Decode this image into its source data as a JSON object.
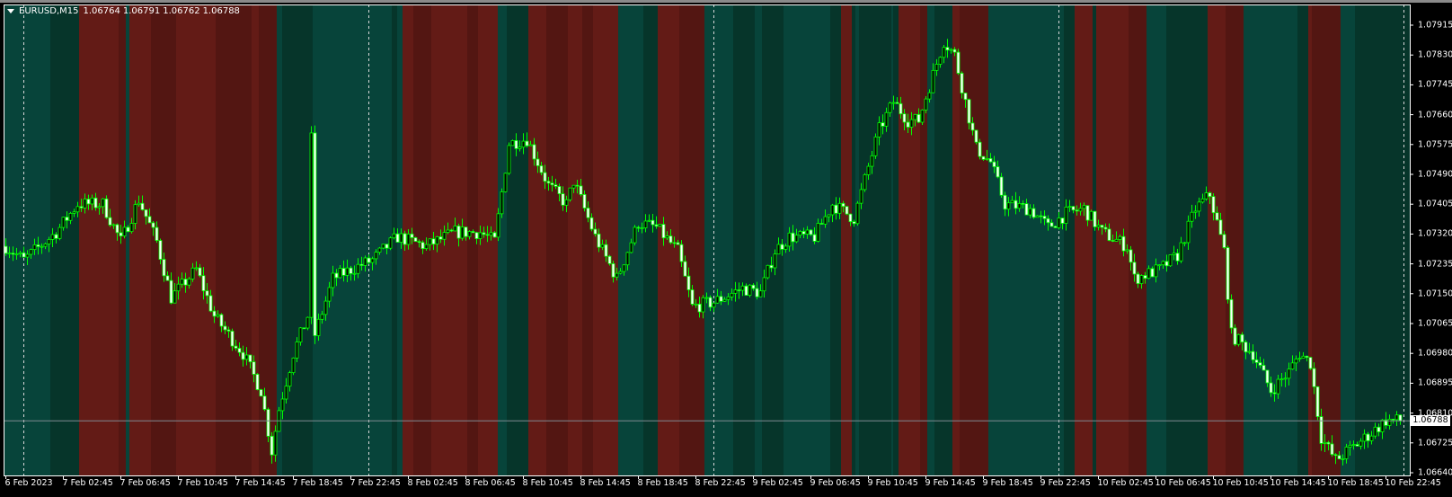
{
  "header": {
    "symbol": "EURUSD,M15",
    "open": "1.06764",
    "high": "1.06791",
    "low": "1.06762",
    "close": "1.06788"
  },
  "colors": {
    "bull_band": "#07443a",
    "bull_band_weak": "#06352a",
    "bear_band": "#631b16",
    "bear_band_weak": "#531612",
    "candle": "#00ff00",
    "bear_body": "#ffffff",
    "price_line": "#7f8a90"
  },
  "current_price": "1.06788",
  "price_axis": [
    "1.07915",
    "1.07830",
    "1.07745",
    "1.07660",
    "1.07575",
    "1.07490",
    "1.07405",
    "1.07320",
    "1.07235",
    "1.07150",
    "1.07065",
    "1.06980",
    "1.06895",
    "1.06810",
    "1.06725",
    "1.06640"
  ],
  "time_axis": [
    "6 Feb 2023",
    "7 Feb 02:45",
    "7 Feb 06:45",
    "7 Feb 10:45",
    "7 Feb 14:45",
    "7 Feb 18:45",
    "7 Feb 22:45",
    "8 Feb 02:45",
    "8 Feb 06:45",
    "8 Feb 10:45",
    "8 Feb 14:45",
    "8 Feb 18:45",
    "8 Feb 22:45",
    "9 Feb 02:45",
    "9 Feb 06:45",
    "9 Feb 10:45",
    "9 Feb 14:45",
    "9 Feb 18:45",
    "9 Feb 22:45",
    "10 Feb 02:45",
    "10 Feb 06:45",
    "10 Feb 10:45",
    "10 Feb 14:45",
    "10 Feb 18:45",
    "10 Feb 22:45"
  ],
  "chart_data": {
    "type": "candlestick",
    "timeframe": "M15",
    "bars_per_label": 16,
    "total_bars": 389,
    "day_separator_bars": [
      5,
      101,
      197,
      293,
      389
    ],
    "ylim": [
      1.06632,
      1.0795
    ],
    "price_path": [
      [
        0,
        1.07285
      ],
      [
        5,
        1.07246
      ],
      [
        14,
        1.07325
      ],
      [
        20,
        1.07405
      ],
      [
        27,
        1.07405
      ],
      [
        32,
        1.07299
      ],
      [
        37,
        1.07418
      ],
      [
        42,
        1.07299
      ],
      [
        46,
        1.07139
      ],
      [
        53,
        1.07219
      ],
      [
        58,
        1.07086
      ],
      [
        66,
        1.0698
      ],
      [
        71,
        1.06874
      ],
      [
        74,
        1.06701
      ],
      [
        76,
        1.06821
      ],
      [
        80,
        1.0698
      ],
      [
        84,
        1.07086
      ],
      [
        85,
        1.07591
      ],
      [
        86,
        1.07033
      ],
      [
        91,
        1.07193
      ],
      [
        96,
        1.07219
      ],
      [
        102,
        1.07246
      ],
      [
        109,
        1.07312
      ],
      [
        117,
        1.07285
      ],
      [
        125,
        1.07325
      ],
      [
        132,
        1.07325
      ],
      [
        136,
        1.07299
      ],
      [
        140,
        1.07578
      ],
      [
        145,
        1.07591
      ],
      [
        151,
        1.07458
      ],
      [
        156,
        1.07405
      ],
      [
        158,
        1.07471
      ],
      [
        164,
        1.07312
      ],
      [
        170,
        1.07193
      ],
      [
        176,
        1.07352
      ],
      [
        181,
        1.07339
      ],
      [
        187,
        1.07272
      ],
      [
        191,
        1.07113
      ],
      [
        197,
        1.07126
      ],
      [
        205,
        1.07166
      ],
      [
        210,
        1.07153
      ],
      [
        214,
        1.07272
      ],
      [
        218,
        1.07312
      ],
      [
        225,
        1.07312
      ],
      [
        230,
        1.07405
      ],
      [
        236,
        1.07365
      ],
      [
        240,
        1.07511
      ],
      [
        243,
        1.07618
      ],
      [
        247,
        1.07697
      ],
      [
        251,
        1.07644
      ],
      [
        254,
        1.07644
      ],
      [
        256,
        1.0771
      ],
      [
        261,
        1.0787
      ],
      [
        264,
        1.0783
      ],
      [
        267,
        1.07697
      ],
      [
        270,
        1.07564
      ],
      [
        274,
        1.07525
      ],
      [
        278,
        1.07405
      ],
      [
        285,
        1.07392
      ],
      [
        290,
        1.07339
      ],
      [
        295,
        1.07378
      ],
      [
        300,
        1.07392
      ],
      [
        305,
        1.07325
      ],
      [
        312,
        1.07285
      ],
      [
        314,
        1.07193
      ],
      [
        321,
        1.07219
      ],
      [
        326,
        1.07259
      ],
      [
        331,
        1.07392
      ],
      [
        335,
        1.07432
      ],
      [
        339,
        1.07272
      ],
      [
        341,
        1.07033
      ],
      [
        347,
        1.0698
      ],
      [
        352,
        1.06874
      ],
      [
        357,
        1.06927
      ],
      [
        360,
        1.0698
      ],
      [
        363,
        1.06953
      ],
      [
        366,
        1.06741
      ],
      [
        370,
        1.06675
      ],
      [
        375,
        1.06714
      ],
      [
        380,
        1.06754
      ],
      [
        384,
        1.06789
      ],
      [
        388,
        1.06788
      ]
    ],
    "bands": [
      [
        0,
        "bull"
      ],
      [
        13,
        "bull_weak"
      ],
      [
        21,
        "bear"
      ],
      [
        32,
        "bear_weak"
      ],
      [
        34,
        "bull"
      ],
      [
        35,
        "bear"
      ],
      [
        41,
        "bear_weak"
      ],
      [
        48,
        "bear"
      ],
      [
        59,
        "bear_weak"
      ],
      [
        69,
        "bear"
      ],
      [
        71,
        "bear_weak"
      ],
      [
        76,
        "bull"
      ],
      [
        77.5,
        "bull_weak"
      ],
      [
        86,
        "bull"
      ],
      [
        108,
        "bull_weak"
      ],
      [
        109.5,
        "bull"
      ],
      [
        111,
        "bear"
      ],
      [
        114,
        "bear_weak"
      ],
      [
        119,
        "bear"
      ],
      [
        129,
        "bear_weak"
      ],
      [
        132,
        "bear"
      ],
      [
        137.5,
        "bull"
      ],
      [
        140,
        "bull_weak"
      ],
      [
        146,
        "bear"
      ],
      [
        151,
        "bear_weak"
      ],
      [
        157,
        "bear"
      ],
      [
        161,
        "bear_weak"
      ],
      [
        164,
        "bear"
      ],
      [
        171,
        "bull"
      ],
      [
        178,
        "bull_weak"
      ],
      [
        182,
        "bear"
      ],
      [
        188,
        "bear_weak"
      ],
      [
        195,
        "bull"
      ],
      [
        203,
        "bull_weak"
      ],
      [
        209,
        "bull"
      ],
      [
        211,
        "bull_weak"
      ],
      [
        217,
        "bull"
      ],
      [
        230,
        "bull_weak"
      ],
      [
        233,
        "bear"
      ],
      [
        236,
        "bull_weak"
      ],
      [
        237,
        "bull"
      ],
      [
        238,
        "bull_weak"
      ],
      [
        247,
        "bull"
      ],
      [
        247.5,
        "bull_weak"
      ],
      [
        249,
        "bear"
      ],
      [
        255,
        "bear_weak"
      ],
      [
        257,
        "bull"
      ],
      [
        259,
        "bull_weak"
      ],
      [
        264,
        "bear"
      ],
      [
        266,
        "bear_weak"
      ],
      [
        274,
        "bull"
      ],
      [
        295,
        "bull_weak"
      ],
      [
        298,
        "bear"
      ],
      [
        303,
        "bull_weak"
      ],
      [
        304,
        "bear"
      ],
      [
        313,
        "bear_weak"
      ],
      [
        318,
        "bull"
      ],
      [
        323.5,
        "bull_weak"
      ],
      [
        335,
        "bear"
      ],
      [
        340,
        "bear_weak"
      ],
      [
        345,
        "bull"
      ],
      [
        360,
        "bull_weak"
      ],
      [
        363,
        "bear"
      ],
      [
        364,
        "bear_weak"
      ],
      [
        372,
        "bull"
      ],
      [
        376,
        "bull_weak"
      ]
    ]
  }
}
